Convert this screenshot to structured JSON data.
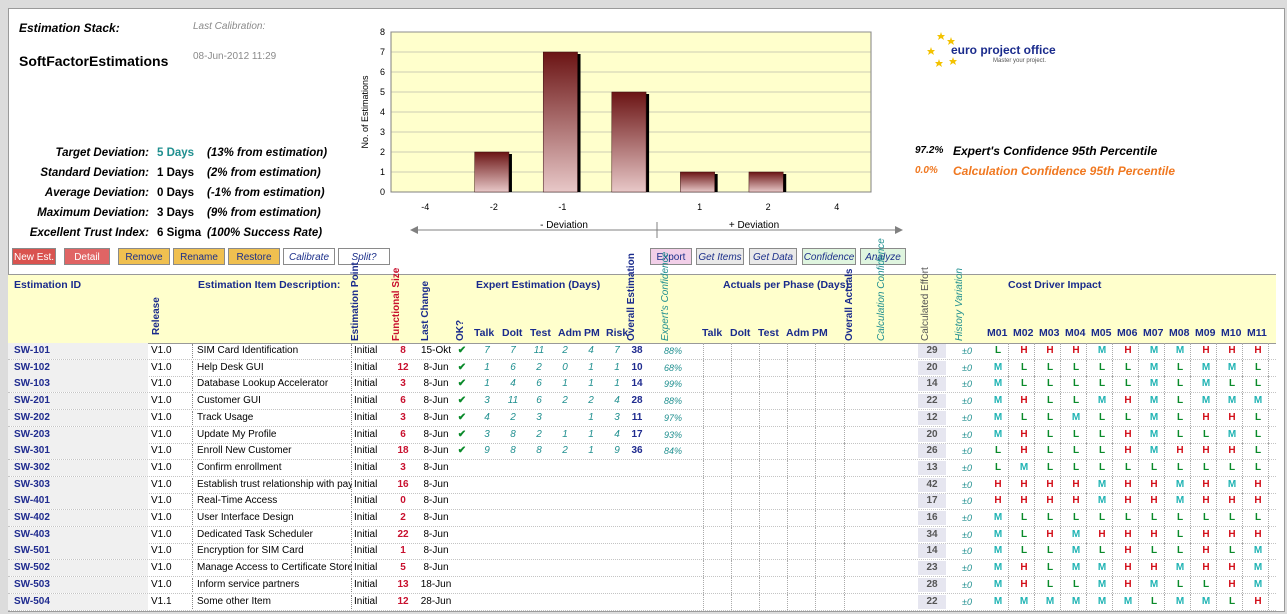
{
  "top": {
    "stack_label": "Estimation Stack:",
    "stack_name": "SoftFactorEstimations",
    "calib_label": "Last Calibration:",
    "calib_date": "08-Jun-2012 11:29"
  },
  "stats": [
    {
      "label": "Target Deviation:",
      "value": "5 Days",
      "note": "(13% from estimation)",
      "accent": true
    },
    {
      "label": "Standard Deviation:",
      "value": "1 Days",
      "note": "(2% from estimation)",
      "accent": false
    },
    {
      "label": "Average Deviation:",
      "value": "0 Days",
      "note": "(-1% from estimation)",
      "accent": false
    },
    {
      "label": "Maximum Deviation:",
      "value": "3 Days",
      "note": "(9% from estimation)",
      "accent": false
    },
    {
      "label": "Excellent Trust Index:",
      "value": "6 Sigma",
      "note": "(100% Success Rate)",
      "accent": false
    }
  ],
  "confidence": [
    {
      "pct": "97.2%",
      "label": "Expert's Confidence 95th Percentile",
      "color": "#000000"
    },
    {
      "pct": "0.0%",
      "label": "Calculation Confidence 95th Percentile",
      "color": "#f07820"
    }
  ],
  "logo": {
    "name": "euro project office",
    "tagline": "Master your project."
  },
  "chart_data": {
    "type": "bar",
    "categories": [
      "-4",
      "-2",
      "-1",
      "",
      "1",
      "2",
      "4"
    ],
    "values": [
      0,
      2,
      7,
      5,
      1,
      1,
      0
    ],
    "ylabel": "No. of Estimations",
    "ylim": [
      0,
      8
    ],
    "yticks": [
      "0",
      "1",
      "2",
      "3",
      "4",
      "5",
      "6",
      "7",
      "8"
    ],
    "neg_label": "- Deviation",
    "pos_label": "+ Deviation"
  },
  "buttons": [
    {
      "label": "New Est.",
      "bg": "#d9534f",
      "color": "#ffffff"
    },
    {
      "label": "Detail",
      "bg": "#e06464",
      "color": "#ffffff"
    },
    {
      "label": "Remove",
      "bg": "#f0c050",
      "color": "#1c2f8a"
    },
    {
      "label": "Rename",
      "bg": "#f0c050",
      "color": "#1c2f8a"
    },
    {
      "label": "Restore",
      "bg": "#f0c050",
      "color": "#1c2f8a"
    },
    {
      "label": "Calibrate",
      "bg": "#ffffff",
      "color": "#1c2f8a"
    },
    {
      "label": "Split?",
      "bg": "#ffffff",
      "color": "#1c2f8a"
    },
    {
      "label": "Export",
      "bg": "#f2cfe8",
      "color": "#1c2f8a"
    },
    {
      "label": "Get Items",
      "bg": "#e9e9e9",
      "color": "#1c2f8a"
    },
    {
      "label": "Get Data",
      "bg": "#e9e9e9",
      "color": "#1c2f8a"
    },
    {
      "label": "Confidence",
      "bg": "#dff5df",
      "color": "#1c2f8a"
    },
    {
      "label": "Analyze",
      "bg": "#dff5df",
      "color": "#1c2f8a"
    }
  ],
  "headers": {
    "est_id": "Estimation ID",
    "release": "Release",
    "desc": "Estimation Item Description:",
    "est_point": "Estimation Point",
    "func_size": "Functional Size",
    "last_change": "Last Change",
    "ok": "OK?",
    "expert_group": "Expert Estimation (Days)",
    "talk": "Talk",
    "doit": "DoIt",
    "test": "Test",
    "adm": "Adm",
    "pm": "PM",
    "risk": "Risk",
    "overall_est": "Overall Estimation",
    "experts_conf": "Expert's Confidence",
    "actuals_group": "Actuals per Phase (Days)",
    "overall_actuals": "Overall Actuals",
    "calc_conf": "Calculation Confidence",
    "calc_effort": "Calculated Effort",
    "history_var": "History Variation",
    "cost_group": "Cost Driver Impact",
    "drivers": [
      "M01",
      "M02",
      "M03",
      "M04",
      "M05",
      "M06",
      "M07",
      "M08",
      "M09",
      "M10",
      "M11"
    ]
  },
  "rows": [
    {
      "id": "SW-101",
      "rel": "V1.0",
      "desc": "SIM Card Identification",
      "ep": "Initial",
      "fs": "8",
      "lc": "15-Okt",
      "ok": "✔",
      "ee": [
        "7",
        "7",
        "11",
        "2",
        "4",
        "7"
      ],
      "ov": "38",
      "conf": "88%",
      "ce": "29",
      "hv": "±0",
      "cd": [
        "L",
        "H",
        "H",
        "H",
        "M",
        "H",
        "M",
        "M",
        "H",
        "H",
        "H"
      ]
    },
    {
      "id": "SW-102",
      "rel": "V1.0",
      "desc": "Help Desk GUI",
      "ep": "Initial",
      "fs": "12",
      "lc": "8-Jun",
      "ok": "✔",
      "ee": [
        "1",
        "6",
        "2",
        "0",
        "1",
        "1"
      ],
      "ov": "10",
      "conf": "68%",
      "ce": "20",
      "hv": "±0",
      "cd": [
        "M",
        "L",
        "L",
        "L",
        "L",
        "L",
        "M",
        "L",
        "M",
        "M",
        "L"
      ]
    },
    {
      "id": "SW-103",
      "rel": "V1.0",
      "desc": "Database Lookup Accelerator",
      "ep": "Initial",
      "fs": "3",
      "lc": "8-Jun",
      "ok": "✔",
      "ee": [
        "1",
        "4",
        "6",
        "1",
        "1",
        "1"
      ],
      "ov": "14",
      "conf": "99%",
      "ce": "14",
      "hv": "±0",
      "cd": [
        "M",
        "L",
        "L",
        "L",
        "L",
        "L",
        "M",
        "L",
        "M",
        "L",
        "L"
      ]
    },
    {
      "id": "SW-201",
      "rel": "V1.0",
      "desc": "Customer GUI",
      "ep": "Initial",
      "fs": "6",
      "lc": "8-Jun",
      "ok": "✔",
      "ee": [
        "3",
        "11",
        "6",
        "2",
        "2",
        "4"
      ],
      "ov": "28",
      "conf": "88%",
      "ce": "22",
      "hv": "±0",
      "cd": [
        "M",
        "H",
        "L",
        "L",
        "M",
        "H",
        "M",
        "L",
        "M",
        "M",
        "M"
      ]
    },
    {
      "id": "SW-202",
      "rel": "V1.0",
      "desc": "Track Usage",
      "ep": "Initial",
      "fs": "3",
      "lc": "8-Jun",
      "ok": "✔",
      "ee": [
        "4",
        "2",
        "3",
        "",
        "1",
        "3"
      ],
      "ov": "11",
      "conf": "97%",
      "ce": "12",
      "hv": "±0",
      "cd": [
        "M",
        "L",
        "L",
        "M",
        "L",
        "L",
        "M",
        "L",
        "H",
        "H",
        "L"
      ]
    },
    {
      "id": "SW-203",
      "rel": "V1.0",
      "desc": "Update My Profile",
      "ep": "Initial",
      "fs": "6",
      "lc": "8-Jun",
      "ok": "✔",
      "ee": [
        "3",
        "8",
        "2",
        "1",
        "1",
        "4"
      ],
      "ov": "17",
      "conf": "93%",
      "ce": "20",
      "hv": "±0",
      "cd": [
        "M",
        "H",
        "L",
        "L",
        "L",
        "H",
        "M",
        "L",
        "L",
        "M",
        "L"
      ]
    },
    {
      "id": "SW-301",
      "rel": "V1.0",
      "desc": "Enroll New Customer",
      "ep": "Initial",
      "fs": "18",
      "lc": "8-Jun",
      "ok": "✔",
      "ee": [
        "9",
        "8",
        "8",
        "2",
        "1",
        "9"
      ],
      "ov": "36",
      "conf": "84%",
      "ce": "26",
      "hv": "±0",
      "cd": [
        "L",
        "H",
        "L",
        "L",
        "L",
        "H",
        "M",
        "H",
        "H",
        "H",
        "L"
      ]
    },
    {
      "id": "SW-302",
      "rel": "V1.0",
      "desc": "Confirm enrollment",
      "ep": "Initial",
      "fs": "3",
      "lc": "8-Jun",
      "ok": "",
      "ee": [
        "",
        "",
        "",
        "",
        "",
        ""
      ],
      "ov": "",
      "conf": "",
      "ce": "13",
      "hv": "±0",
      "cd": [
        "L",
        "M",
        "L",
        "L",
        "L",
        "L",
        "L",
        "L",
        "L",
        "L",
        "L"
      ]
    },
    {
      "id": "SW-303",
      "rel": "V1.0",
      "desc": "Establish trust relationship with payment",
      "ep": "Initial",
      "fs": "16",
      "lc": "8-Jun",
      "ok": "",
      "ee": [
        "",
        "",
        "",
        "",
        "",
        ""
      ],
      "ov": "",
      "conf": "",
      "ce": "42",
      "hv": "±0",
      "cd": [
        "H",
        "H",
        "H",
        "H",
        "M",
        "H",
        "H",
        "M",
        "H",
        "M",
        "H"
      ]
    },
    {
      "id": "SW-401",
      "rel": "V1.0",
      "desc": "Real-Time Access",
      "ep": "Initial",
      "fs": "0",
      "lc": "8-Jun",
      "ok": "",
      "ee": [
        "",
        "",
        "",
        "",
        "",
        ""
      ],
      "ov": "",
      "conf": "",
      "ce": "17",
      "hv": "±0",
      "cd": [
        "H",
        "H",
        "H",
        "H",
        "M",
        "H",
        "H",
        "M",
        "H",
        "H",
        "H"
      ]
    },
    {
      "id": "SW-402",
      "rel": "V1.0",
      "desc": "User Interface Design",
      "ep": "Initial",
      "fs": "2",
      "lc": "8-Jun",
      "ok": "",
      "ee": [
        "",
        "",
        "",
        "",
        "",
        ""
      ],
      "ov": "",
      "conf": "",
      "ce": "16",
      "hv": "±0",
      "cd": [
        "M",
        "L",
        "L",
        "L",
        "L",
        "L",
        "L",
        "L",
        "L",
        "L",
        "L"
      ]
    },
    {
      "id": "SW-403",
      "rel": "V1.0",
      "desc": "Dedicated Task Scheduler",
      "ep": "Initial",
      "fs": "22",
      "lc": "8-Jun",
      "ok": "",
      "ee": [
        "",
        "",
        "",
        "",
        "",
        ""
      ],
      "ov": "",
      "conf": "",
      "ce": "34",
      "hv": "±0",
      "cd": [
        "M",
        "L",
        "H",
        "M",
        "H",
        "H",
        "H",
        "L",
        "H",
        "H",
        "H"
      ]
    },
    {
      "id": "SW-501",
      "rel": "V1.0",
      "desc": "Encryption for SIM Card",
      "ep": "Initial",
      "fs": "1",
      "lc": "8-Jun",
      "ok": "",
      "ee": [
        "",
        "",
        "",
        "",
        "",
        ""
      ],
      "ov": "",
      "conf": "",
      "ce": "14",
      "hv": "±0",
      "cd": [
        "M",
        "L",
        "L",
        "M",
        "L",
        "H",
        "L",
        "L",
        "H",
        "L",
        "M"
      ]
    },
    {
      "id": "SW-502",
      "rel": "V1.0",
      "desc": "Manage Access to Certificate Store",
      "ep": "Initial",
      "fs": "5",
      "lc": "8-Jun",
      "ok": "",
      "ee": [
        "",
        "",
        "",
        "",
        "",
        ""
      ],
      "ov": "",
      "conf": "",
      "ce": "23",
      "hv": "±0",
      "cd": [
        "M",
        "H",
        "L",
        "M",
        "M",
        "H",
        "H",
        "M",
        "H",
        "H",
        "M"
      ]
    },
    {
      "id": "SW-503",
      "rel": "V1.0",
      "desc": "Inform service partners",
      "ep": "Initial",
      "fs": "13",
      "lc": "18-Jun",
      "ok": "",
      "ee": [
        "",
        "",
        "",
        "",
        "",
        ""
      ],
      "ov": "",
      "conf": "",
      "ce": "28",
      "hv": "±0",
      "cd": [
        "M",
        "H",
        "L",
        "L",
        "M",
        "H",
        "M",
        "L",
        "L",
        "H",
        "M"
      ]
    },
    {
      "id": "SW-504",
      "rel": "V1.1",
      "desc": "Some other Item",
      "ep": "Initial",
      "fs": "12",
      "lc": "28-Jun",
      "ok": "",
      "ee": [
        "",
        "",
        "",
        "",
        "",
        ""
      ],
      "ov": "",
      "conf": "",
      "ce": "22",
      "hv": "±0",
      "cd": [
        "M",
        "M",
        "M",
        "M",
        "M",
        "M",
        "L",
        "M",
        "M",
        "L",
        "H"
      ]
    }
  ]
}
